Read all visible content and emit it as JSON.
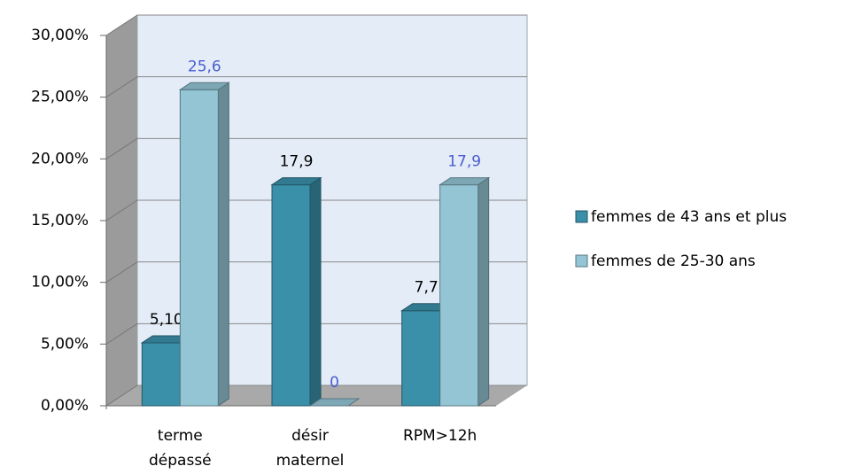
{
  "chart_data": {
    "type": "bar3d",
    "categories": [
      "terme dépassé",
      "désir maternel",
      "RPM>12h"
    ],
    "series": [
      {
        "name": "femmes de 43 ans et plus",
        "color": "#3a8fa9",
        "label_color": "#000000",
        "values": [
          5.1,
          17.9,
          7.7
        ],
        "value_labels": [
          "5,10",
          "17,9",
          "7,7"
        ]
      },
      {
        "name": "femmes de 25-30 ans",
        "color": "#93c5d5",
        "label_color": "#4a5cd0",
        "values": [
          25.6,
          0,
          17.9
        ],
        "value_labels": [
          "25,6",
          "0",
          "17,9"
        ]
      }
    ],
    "ylim": [
      0,
      30
    ],
    "yticks": [
      {
        "value": 0,
        "label": "0,00%"
      },
      {
        "value": 5,
        "label": "5,00%"
      },
      {
        "value": 10,
        "label": "10,00%"
      },
      {
        "value": 15,
        "label": "15,00%"
      },
      {
        "value": 20,
        "label": "20,00%"
      },
      {
        "value": 25,
        "label": "25,00%"
      },
      {
        "value": 30,
        "label": "30,00%"
      }
    ],
    "grid": true,
    "legend": "right"
  }
}
